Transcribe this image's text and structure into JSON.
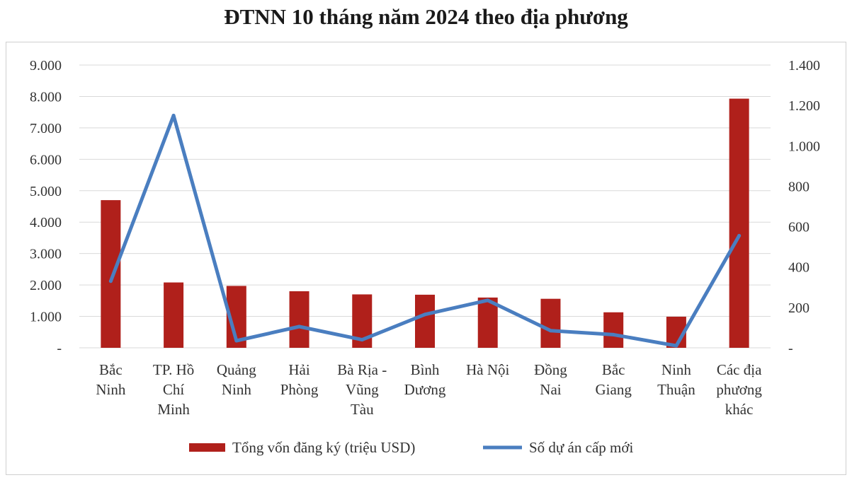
{
  "chart_data": {
    "type": "bar",
    "title": "ĐTNN 10 tháng năm 2024 theo địa phương",
    "categories": [
      [
        "Bắc",
        "Ninh"
      ],
      [
        "TP. Hồ",
        "Chí",
        "Minh"
      ],
      [
        "Quảng",
        "Ninh"
      ],
      [
        "Hải",
        "Phòng"
      ],
      [
        "Bà Rịa -",
        "Vũng",
        "Tàu"
      ],
      [
        "Bình",
        "Dương"
      ],
      [
        "Hà Nội"
      ],
      [
        "Đồng",
        "Nai"
      ],
      [
        "Bắc",
        "Giang"
      ],
      [
        "Ninh",
        "Thuận"
      ],
      [
        "Các địa",
        "phương",
        "khác"
      ]
    ],
    "series": [
      {
        "name": "Tổng vốn đăng ký (triệu USD)",
        "type": "bar",
        "axis": "left",
        "color": "#b0201b",
        "values": [
          4700,
          2080,
          1970,
          1800,
          1700,
          1690,
          1600,
          1560,
          1130,
          990,
          7930
        ]
      },
      {
        "name": "Số dự án cấp mới",
        "type": "line",
        "axis": "right",
        "color": "#4a7ec0",
        "values": [
          330,
          1150,
          35,
          105,
          40,
          165,
          235,
          85,
          65,
          10,
          555
        ]
      }
    ],
    "y_left": {
      "min": 0,
      "max": 9000,
      "ticks": [
        0,
        1000,
        2000,
        3000,
        4000,
        5000,
        6000,
        7000,
        8000,
        9000
      ],
      "tick_labels": [
        "-",
        "1.000",
        "2.000",
        "3.000",
        "4.000",
        "5.000",
        "6.000",
        "7.000",
        "8.000",
        "9.000"
      ]
    },
    "y_right": {
      "min": 0,
      "max": 1400,
      "ticks": [
        0,
        200,
        400,
        600,
        800,
        1000,
        1200,
        1400
      ],
      "tick_labels": [
        "-",
        "200",
        "400",
        "600",
        "800",
        "1.000",
        "1.200",
        "1.400"
      ]
    },
    "grid": true,
    "legend_position": "bottom"
  }
}
